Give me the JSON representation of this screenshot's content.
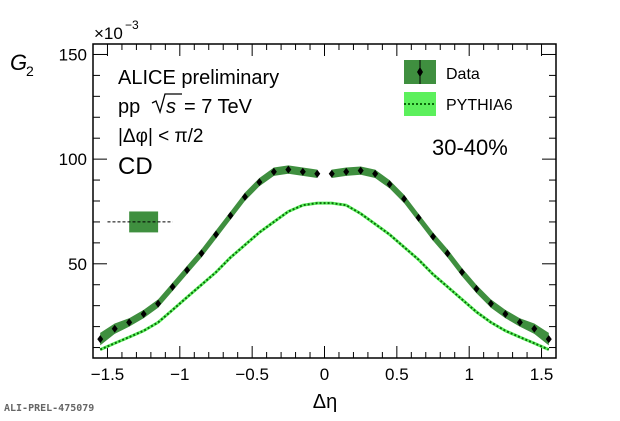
{
  "chart_data": {
    "type": "line",
    "xlabel": "Δη",
    "ylabel_main": "G",
    "ylabel_sub": "2",
    "y_multiplier_base": "×10",
    "y_multiplier_exp": "−3",
    "xlim": [
      -1.6,
      1.6
    ],
    "ylim": [
      5,
      155
    ],
    "x_ticks": [
      -1.5,
      -1,
      -0.5,
      0,
      0.5,
      1,
      1.5
    ],
    "x_tick_labels": [
      "−1.5",
      "−1",
      "−0.5",
      "0",
      "0.5",
      "1",
      "1.5"
    ],
    "y_ticks": [
      50,
      100,
      150
    ],
    "y_tick_labels": [
      "50",
      "100",
      "150"
    ],
    "annotations": {
      "line1": "ALICE preliminary",
      "line2_pre": "pp",
      "line2_sqrt": "s",
      "line2_post": "= 7 TeV",
      "line3": "|Δφ| < π/2",
      "line4": "CD",
      "centrality": "30-40%"
    },
    "legend_placement": "top-right",
    "series": [
      {
        "name": "Data",
        "color": "#1a5c1a",
        "band_color": "#3f8f3f",
        "marker": "diamond",
        "x": [
          -1.55,
          -1.45,
          -1.35,
          -1.25,
          -1.15,
          -1.05,
          -0.95,
          -0.85,
          -0.75,
          -0.65,
          -0.55,
          -0.45,
          -0.35,
          -0.25,
          -0.15,
          -0.05,
          0.05,
          0.15,
          0.25,
          0.35,
          0.45,
          0.55,
          0.65,
          0.75,
          0.85,
          0.95,
          1.05,
          1.15,
          1.25,
          1.35,
          1.45,
          1.55
        ],
        "y": [
          14,
          19,
          22,
          26,
          31,
          39,
          47,
          55,
          64,
          73,
          82,
          89,
          94,
          95,
          94,
          93,
          93,
          94,
          94.5,
          93,
          88,
          81,
          72,
          63,
          55,
          46,
          38,
          31,
          26,
          22,
          19,
          14
        ],
        "band_half_width": [
          3,
          2.5,
          2,
          2,
          2,
          2,
          2,
          2,
          2,
          2,
          2,
          2,
          2,
          2,
          2,
          2,
          2,
          2,
          2,
          2,
          2,
          2,
          2,
          2,
          2,
          2,
          2,
          2,
          2,
          2,
          2.5,
          3
        ]
      },
      {
        "name": "PYTHIA6",
        "color": "#0a8a0a",
        "band_color": "#5cf05c",
        "marker": "dotted",
        "x": [
          -1.55,
          -1.45,
          -1.35,
          -1.25,
          -1.15,
          -1.05,
          -0.95,
          -0.85,
          -0.75,
          -0.65,
          -0.55,
          -0.45,
          -0.35,
          -0.25,
          -0.15,
          -0.05,
          0.05,
          0.15,
          0.25,
          0.35,
          0.45,
          0.55,
          0.65,
          0.75,
          0.85,
          0.95,
          1.05,
          1.15,
          1.25,
          1.35,
          1.45,
          1.55
        ],
        "y": [
          9,
          12,
          15,
          18,
          22,
          28,
          34,
          40,
          46,
          53,
          59,
          65,
          70,
          75,
          78,
          79,
          79,
          78,
          74,
          69,
          64,
          58,
          52,
          45,
          39,
          33,
          27,
          22,
          18,
          15,
          12,
          9
        ]
      }
    ],
    "systematic_box": {
      "x_range": [
        -1.35,
        -1.15
      ],
      "y_center": 70,
      "half_height": 5,
      "dashed_x_range": [
        -1.5,
        -1.05
      ]
    }
  },
  "footer": {
    "id": "ALI-PREL-475079"
  }
}
